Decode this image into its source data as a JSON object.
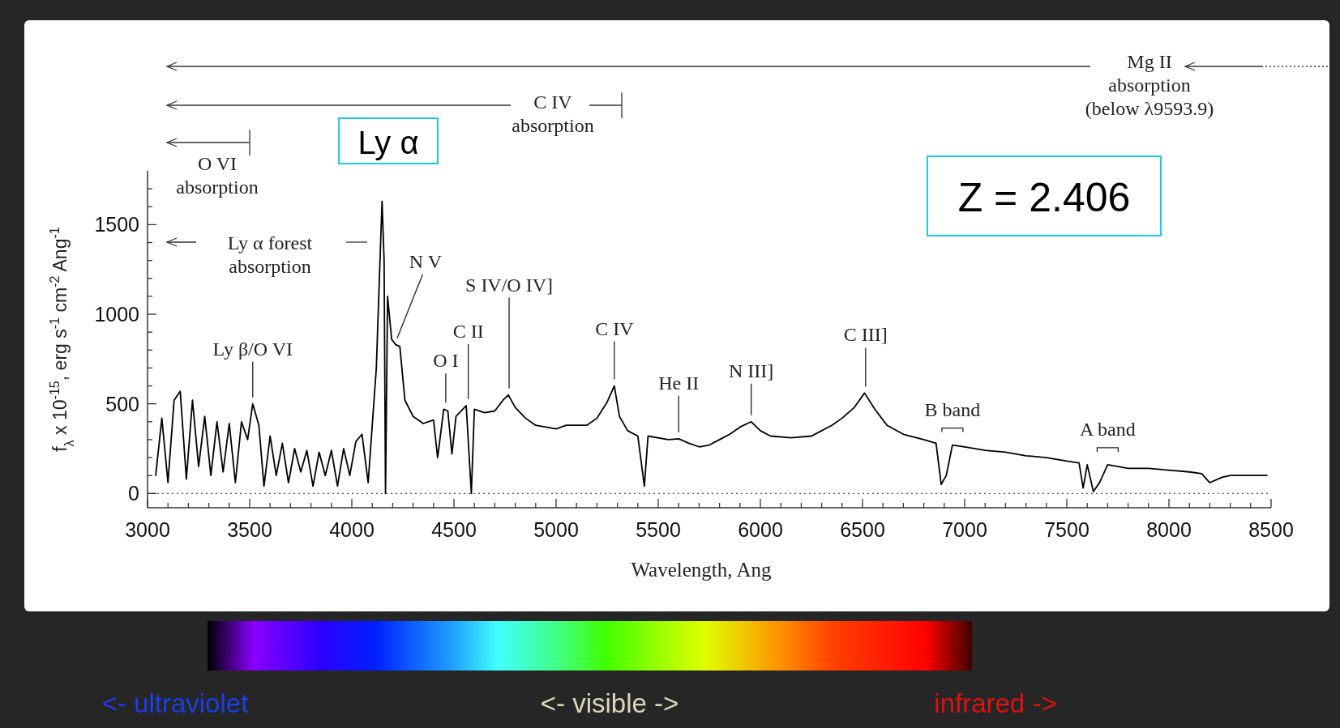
{
  "chart_data": {
    "type": "line",
    "xlabel": "Wavelength, Ang",
    "ylabel": "f$_{λ}$ x 10$^{-15}$, erg s$^{-1}$ cm$^{-2}$ Ang$^{-1}$",
    "x": [
      3040,
      3070,
      3100,
      3130,
      3160,
      3190,
      3220,
      3250,
      3280,
      3310,
      3340,
      3370,
      3400,
      3430,
      3460,
      3490,
      3515,
      3545,
      3570,
      3600,
      3630,
      3660,
      3690,
      3720,
      3750,
      3780,
      3810,
      3840,
      3870,
      3900,
      3930,
      3960,
      3990,
      4020,
      4050,
      4080,
      4100,
      4120,
      4135,
      4148,
      4158,
      4165,
      4175,
      4195,
      4215,
      4235,
      4260,
      4300,
      4350,
      4400,
      4420,
      4450,
      4470,
      4490,
      4510,
      4560,
      4585,
      4600,
      4650,
      4700,
      4740,
      4766,
      4800,
      4850,
      4900,
      4950,
      5000,
      5050,
      5100,
      5150,
      5200,
      5250,
      5285,
      5310,
      5350,
      5400,
      5432,
      5450,
      5550,
      5600,
      5650,
      5700,
      5750,
      5800,
      5850,
      5900,
      5955,
      6000,
      6050,
      6150,
      6250,
      6300,
      6350,
      6400,
      6460,
      6510,
      6560,
      6620,
      6700,
      6800,
      6860,
      6885,
      6910,
      6940,
      7000,
      7100,
      7200,
      7300,
      7400,
      7500,
      7560,
      7580,
      7600,
      7630,
      7660,
      7700,
      7800,
      7900,
      8000,
      8100,
      8160,
      8200,
      8260,
      8300,
      8400,
      8480
    ],
    "series": [
      {
        "color": "#000000",
        "values": [
          100,
          420,
          60,
          520,
          570,
          80,
          520,
          150,
          430,
          100,
          400,
          120,
          390,
          60,
          400,
          300,
          500,
          380,
          40,
          320,
          100,
          280,
          60,
          250,
          120,
          240,
          40,
          230,
          100,
          240,
          40,
          250,
          100,
          290,
          330,
          60,
          380,
          700,
          1200,
          1630,
          1300,
          0,
          1100,
          860,
          830,
          820,
          520,
          430,
          390,
          410,
          200,
          470,
          460,
          220,
          430,
          490,
          0,
          470,
          450,
          460,
          520,
          550,
          480,
          420,
          380,
          370,
          360,
          380,
          380,
          380,
          420,
          510,
          600,
          430,
          350,
          320,
          40,
          320,
          300,
          305,
          280,
          260,
          270,
          300,
          330,
          370,
          400,
          350,
          320,
          310,
          320,
          350,
          380,
          420,
          480,
          560,
          470,
          380,
          330,
          300,
          280,
          50,
          100,
          270,
          260,
          240,
          230,
          210,
          200,
          180,
          170,
          30,
          160,
          10,
          60,
          160,
          140,
          140,
          130,
          120,
          110,
          60,
          90,
          100,
          100,
          100
        ]
      }
    ],
    "xlim": [
      3000,
      8500
    ],
    "ylim": [
      -80,
      1800
    ],
    "xticks": [
      3000,
      3500,
      4000,
      4500,
      5000,
      5500,
      6000,
      6500,
      7000,
      7500,
      8000,
      8500,
      {
        "value": 3100,
        "label": null
      },
      {
        "value": 3200,
        "label": null
      },
      {
        "value": 3300,
        "label": null
      },
      {
        "value": 3400,
        "label": null
      },
      {
        "value": 3600,
        "label": null
      },
      {
        "value": 3700,
        "label": null
      },
      {
        "value": 3800,
        "label": null
      },
      {
        "value": 3900,
        "label": null
      },
      {
        "value": 4100,
        "label": null
      },
      {
        "value": 4200,
        "label": null
      },
      {
        "value": 4300,
        "label": null
      },
      {
        "value": 4400,
        "label": null
      },
      {
        "value": 4600,
        "label": null
      },
      {
        "value": 4700,
        "label": null
      },
      {
        "value": 4800,
        "label": null
      },
      {
        "value": 4900,
        "label": null
      },
      {
        "value": 5100,
        "label": null
      },
      {
        "value": 5200,
        "label": null
      },
      {
        "value": 5300,
        "label": null
      },
      {
        "value": 5400,
        "label": null
      },
      {
        "value": 5600,
        "label": null
      },
      {
        "value": 5700,
        "label": null
      },
      {
        "value": 5800,
        "label": null
      },
      {
        "value": 5900,
        "label": null
      },
      {
        "value": 6100,
        "label": null
      },
      {
        "value": 6200,
        "label": null
      },
      {
        "value": 6300,
        "label": null
      },
      {
        "value": 6400,
        "label": null
      },
      {
        "value": 6600,
        "label": null
      },
      {
        "value": 6700,
        "label": null
      },
      {
        "value": 6800,
        "label": null
      },
      {
        "value": 6900,
        "label": null
      },
      {
        "value": 7100,
        "label": null
      },
      {
        "value": 7200,
        "label": null
      },
      {
        "value": 7300,
        "label": null
      },
      {
        "value": 7400,
        "label": null
      },
      {
        "value": 7600,
        "label": null
      },
      {
        "value": 7700,
        "label": null
      },
      {
        "value": 7800,
        "label": null
      },
      {
        "value": 7900,
        "label": null
      },
      {
        "value": 8100,
        "label": null
      },
      {
        "value": 8200,
        "label": null
      },
      {
        "value": 8300,
        "label": null
      },
      {
        "value": 8400,
        "label": null
      }
    ],
    "yticks": [
      0,
      500,
      1000,
      1500,
      {
        "value": 100,
        "label": null
      },
      {
        "value": 200,
        "label": null
      },
      {
        "value": 300,
        "label": null
      },
      {
        "value": 400,
        "label": null
      },
      {
        "value": 600,
        "label": null
      },
      {
        "value": 700,
        "label": null
      },
      {
        "value": 800,
        "label": null
      },
      {
        "value": 900,
        "label": null
      },
      {
        "value": 1100,
        "label": null
      },
      {
        "value": 1200,
        "label": null
      },
      {
        "value": 1300,
        "label": null
      },
      {
        "value": 1400,
        "label": null
      },
      {
        "value": 1600,
        "label": null
      },
      {
        "value": 1700,
        "label": null
      }
    ],
    "ref_lines": [
      {
        "axis": "y",
        "value": 0,
        "line_style": "dotted",
        "color": "#555555"
      }
    ],
    "marker": "none",
    "line_style": "solid",
    "grid": false,
    "annotations": [
      {
        "text": "Ly β/O VI",
        "x": 3515,
        "y": 500
      },
      {
        "text": "N V",
        "x": 4222,
        "y": 830
      },
      {
        "text": "O I",
        "x": 4460,
        "y": 470
      },
      {
        "text": "C II",
        "x": 4570,
        "y": 490
      },
      {
        "text": "S IV/O IV]",
        "x": 4770,
        "y": 550
      },
      {
        "text": "C IV",
        "x": 5285,
        "y": 600
      },
      {
        "text": "He II",
        "x": 5600,
        "y": 305
      },
      {
        "text": "N III]",
        "x": 5955,
        "y": 400
      },
      {
        "text": "C III]",
        "x": 6515,
        "y": 560
      },
      {
        "text": "B band",
        "x": 6940,
        "y": 270
      },
      {
        "text": "A band",
        "x": 7700,
        "y": 160
      },
      "O VI\nabsorption",
      "C IV\nabsorption",
      "Mg II\nabsorption\n(below λ9593.9)",
      "Ly α  forest\nabsorption",
      "Ly α",
      "Z = 2.406",
      "<- ultraviolet",
      "<- visible ->",
      "infrared ->"
    ]
  }
}
